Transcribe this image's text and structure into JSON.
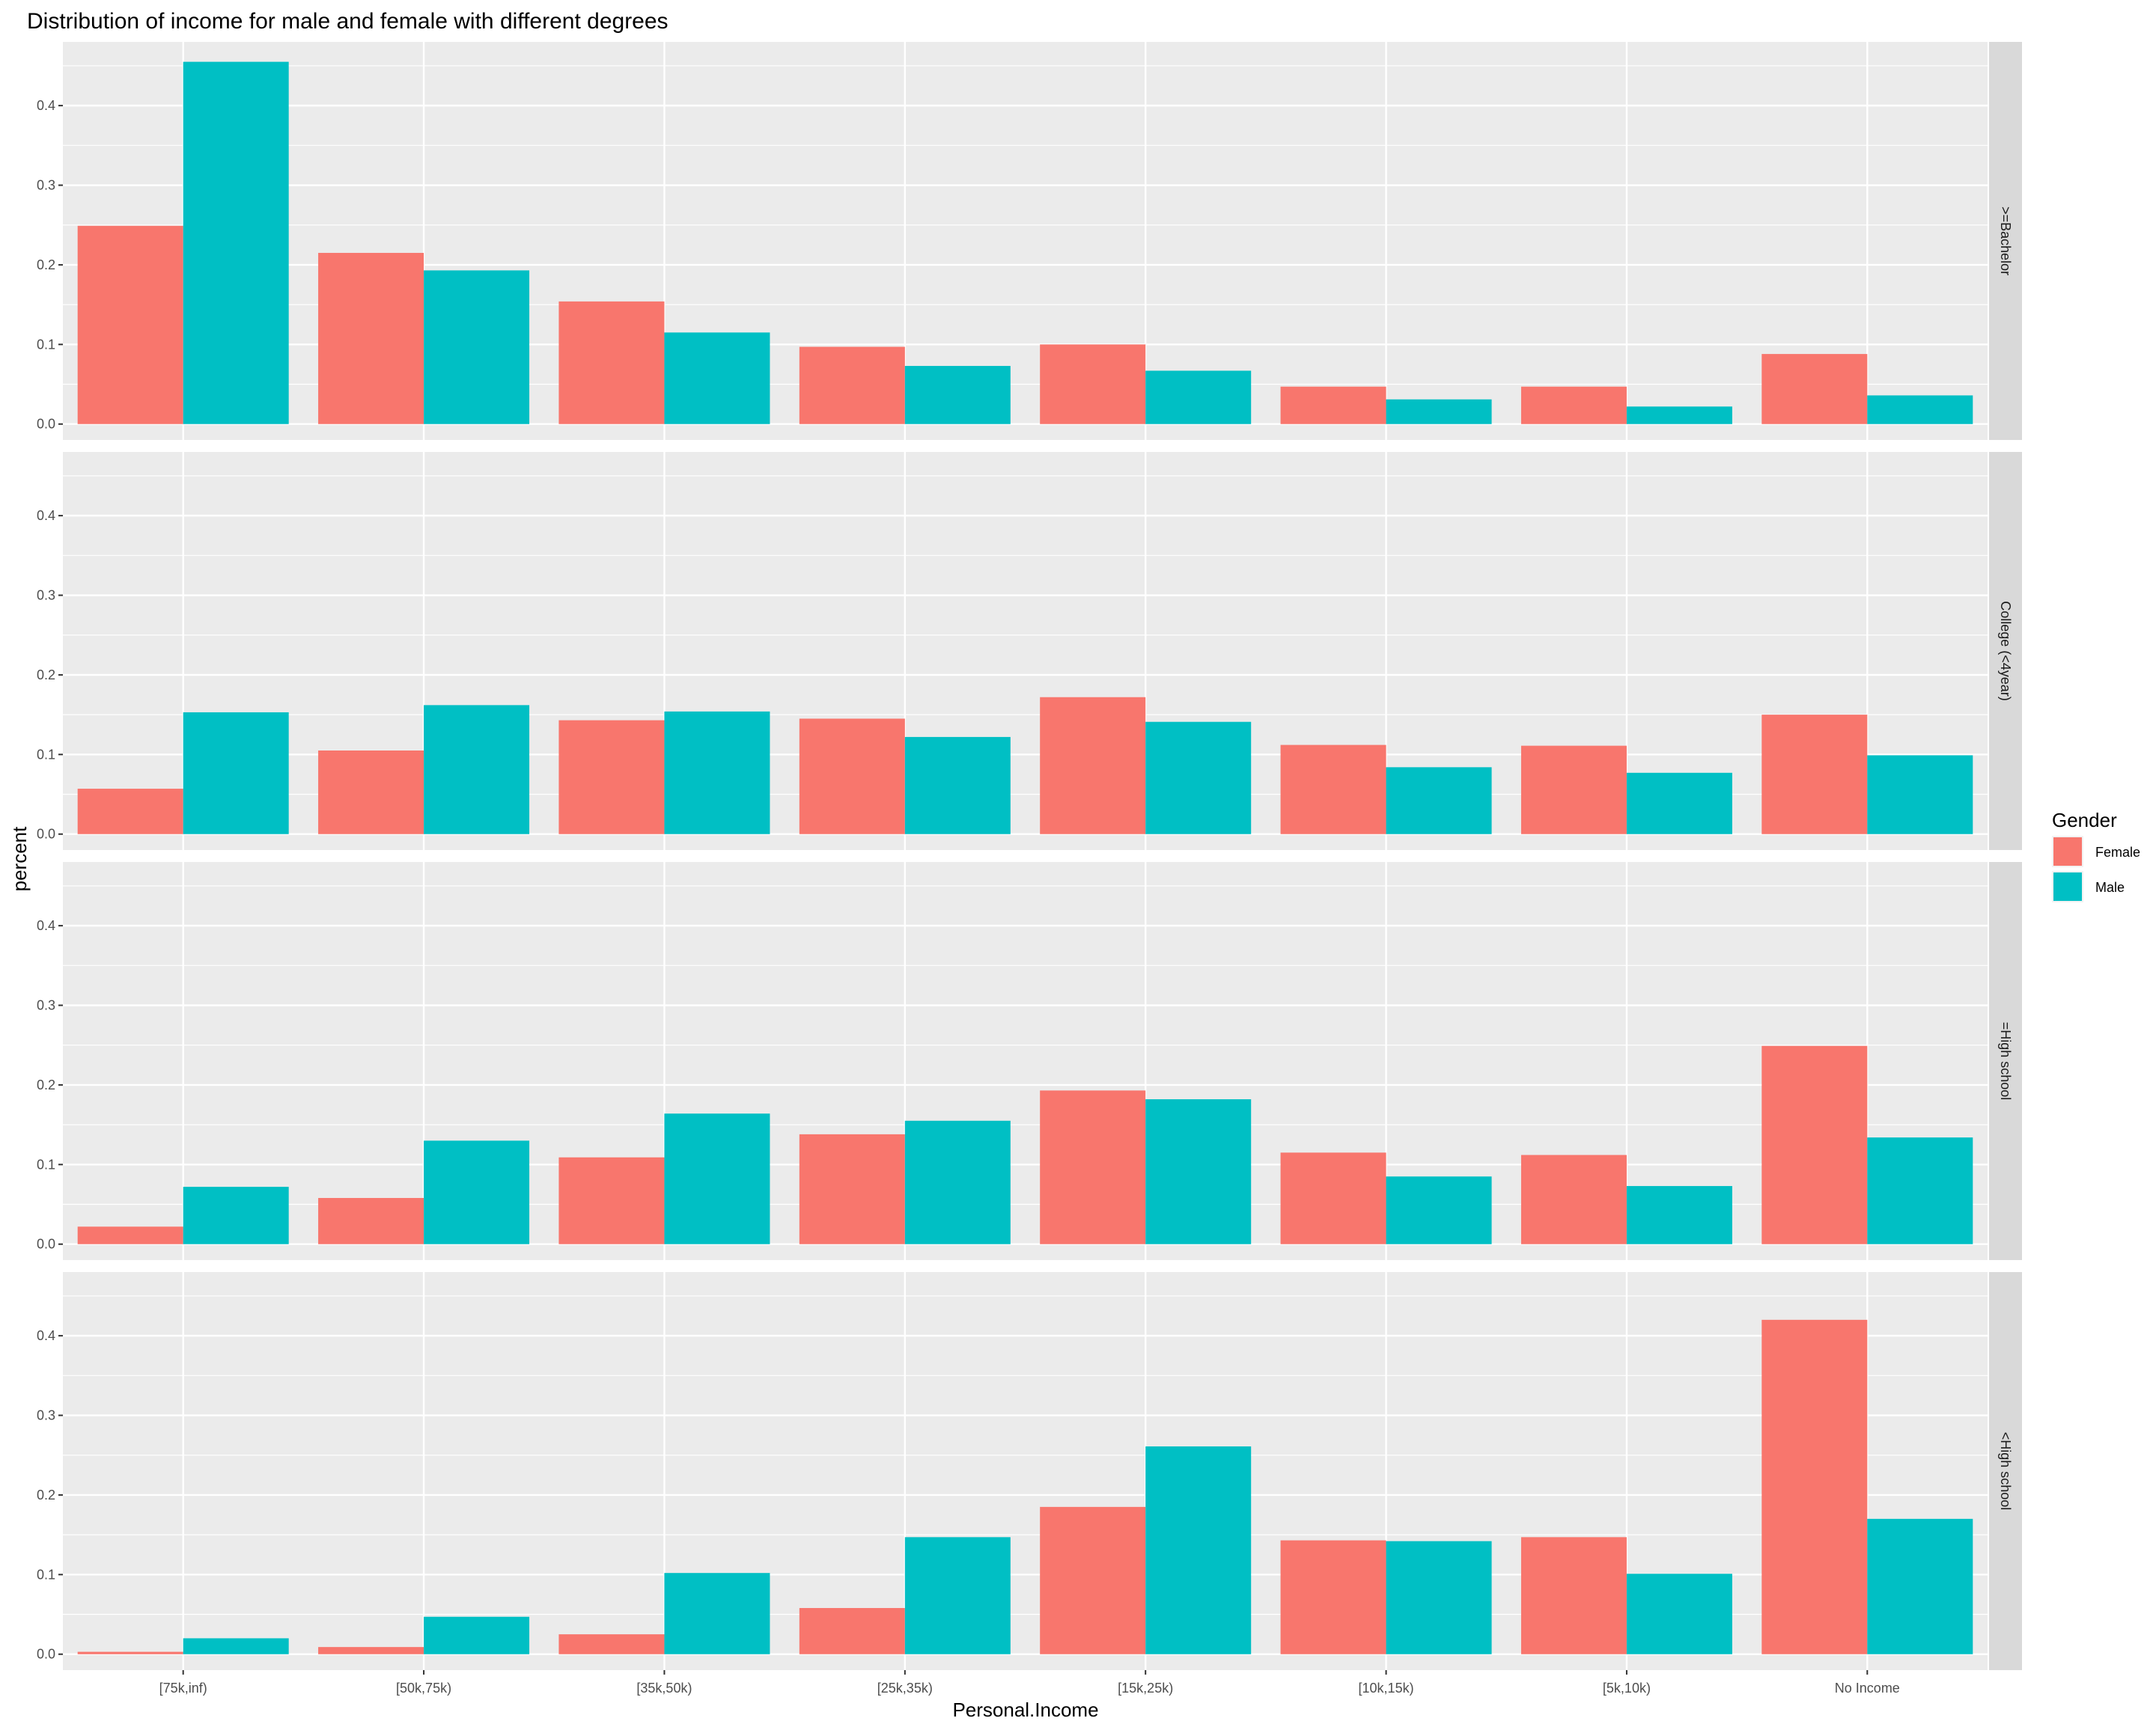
{
  "chart_data": {
    "type": "bar",
    "title": "Distribution of income for male and female with different degrees",
    "xlabel": "Personal.Income",
    "ylabel": "percent",
    "ylim": [
      -0.02,
      0.48
    ],
    "yticks": [
      "0.0",
      "0.1",
      "0.2",
      "0.3",
      "0.4"
    ],
    "categories": [
      "[75k,inf)",
      "[50k,75k)",
      "[35k,50k)",
      "[25k,35k)",
      "[15k,25k)",
      "[10k,15k)",
      "[5k,10k)",
      "No Income"
    ],
    "legend": {
      "title": "Gender",
      "position": "right",
      "entries": [
        {
          "name": "Female",
          "color": "#F8766D"
        },
        {
          "name": "Male",
          "color": "#00BFC4"
        }
      ]
    },
    "grid": true,
    "facets": [
      {
        "label": ">=Bachelor",
        "series": [
          {
            "name": "Female",
            "values": [
              0.249,
              0.215,
              0.154,
              0.097,
              0.1,
              0.047,
              0.047,
              0.088
            ]
          },
          {
            "name": "Male",
            "values": [
              0.455,
              0.193,
              0.115,
              0.073,
              0.067,
              0.031,
              0.022,
              0.036
            ]
          }
        ]
      },
      {
        "label": "College (<4year)",
        "series": [
          {
            "name": "Female",
            "values": [
              0.057,
              0.105,
              0.143,
              0.145,
              0.172,
              0.112,
              0.111,
              0.15
            ]
          },
          {
            "name": "Male",
            "values": [
              0.153,
              0.162,
              0.154,
              0.122,
              0.141,
              0.084,
              0.077,
              0.099
            ]
          }
        ]
      },
      {
        "label": "=High school",
        "series": [
          {
            "name": "Female",
            "values": [
              0.022,
              0.058,
              0.109,
              0.138,
              0.193,
              0.115,
              0.112,
              0.249
            ]
          },
          {
            "name": "Male",
            "values": [
              0.072,
              0.13,
              0.164,
              0.155,
              0.182,
              0.085,
              0.073,
              0.134
            ]
          }
        ]
      },
      {
        "label": "<High school",
        "series": [
          {
            "name": "Female",
            "values": [
              0.003,
              0.009,
              0.025,
              0.058,
              0.185,
              0.143,
              0.147,
              0.42
            ]
          },
          {
            "name": "Male",
            "values": [
              0.02,
              0.047,
              0.102,
              0.147,
              0.261,
              0.142,
              0.101,
              0.17
            ]
          }
        ]
      }
    ]
  }
}
